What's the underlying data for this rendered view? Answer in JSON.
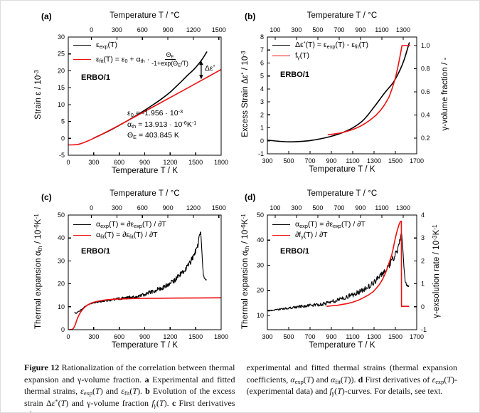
{
  "caption": {
    "left": "!{Figure 12} Rationalization of the correlation between thermal expansion and γ-volume fraction. !{a} Experimental and fitted thermal strains, ~{ε}_{exp}(~{T}) and ~{ε}_{fit}(~{T}). !{b} Evolution of the excess strain Δ~{ε}^{*}(~{T}) and γ-volume fraction ~{f}_{~{γ}}(~{T}). !{c} First derivatives of",
    "right": "experimental and fitted thermal strains (thermal expansion coefficients, ~{α}_{exp}(~{T}) and ~{α}_{fit}(~{T})). !{d} First derivatives of ~{ε}_{exp}(~{T})-(experimental data) and ~{f}_{~{γ}}(~{T})-curves. For details, see text."
  },
  "colors": {
    "experimental": "#000000",
    "fit": "#ee1111",
    "axis": "#000000"
  },
  "chart_data": [
    {
      "id": "a",
      "panel_label": "(a)",
      "type": "line",
      "top_axis_label": "Temperature T / °C",
      "x_axis_label": "Temperature T / K",
      "y_axis_label": "Strain ε / 10^{-3}",
      "x_range": [
        0,
        1800
      ],
      "x_ticks": [
        0,
        300,
        600,
        900,
        1200,
        1500,
        1800
      ],
      "x_ticks_celsius": [
        0,
        300,
        600,
        900,
        1200,
        1500
      ],
      "y_range": [
        -5,
        30
      ],
      "y_ticks": [
        -5,
        0,
        5,
        10,
        15,
        20,
        25,
        30
      ],
      "grid": false,
      "sample_label": "ERBO/1",
      "legend": [
        {
          "color": "#000000",
          "label": "ε_{exp}(T)"
        },
        {
          "color": "#ee1111",
          "label": "ε_{fit}(T) = ε_{0} + α_{th} ·",
          "frac_num": "Θ_{E}",
          "frac_den": "-1+exp(Θ_{E}/T)"
        }
      ],
      "fit_parameters": [
        "ε_{0}  =  -1.956 · 10^{-3}",
        "α_{th}  =  13.913 · 10^{-6}K^{-1}",
        "Θ_{E} = 403.845 K"
      ],
      "arrow_annotation": {
        "x": 1565,
        "y_from": 17.5,
        "y_to": 23.0,
        "label": "Δε^{*}"
      },
      "series": [
        {
          "name": "eps_exp",
          "color": "#000000",
          "axis": "L",
          "smooth": true,
          "width": 1.6,
          "points": [
            [
              300,
              0.07
            ],
            [
              400,
              1.24
            ],
            [
              500,
              2.48
            ],
            [
              600,
              3.85
            ],
            [
              700,
              5.26
            ],
            [
              800,
              6.76
            ],
            [
              900,
              8.32
            ],
            [
              1000,
              9.96
            ],
            [
              1100,
              11.71
            ],
            [
              1200,
              13.69
            ],
            [
              1300,
              16.06
            ],
            [
              1400,
              18.55
            ],
            [
              1480,
              20.45
            ],
            [
              1540,
              22.19
            ],
            [
              1580,
              23.53
            ],
            [
              1610,
              24.74
            ],
            [
              1630,
              25.55
            ]
          ]
        },
        {
          "name": "eps_fit",
          "color": "#ee1111",
          "axis": "L",
          "smooth": true,
          "width": 1.6,
          "points": [
            [
              0,
              -1.96
            ],
            [
              100,
              -1.86
            ],
            [
              150,
              -1.55
            ],
            [
              200,
              -1.1
            ],
            [
              250,
              -0.56
            ],
            [
              300,
              0.02
            ],
            [
              400,
              1.27
            ],
            [
              500,
              2.56
            ],
            [
              600,
              3.9
            ],
            [
              700,
              5.24
            ],
            [
              800,
              6.6
            ],
            [
              900,
              7.97
            ],
            [
              1000,
              9.34
            ],
            [
              1100,
              10.71
            ],
            [
              1200,
              12.09
            ],
            [
              1300,
              13.46
            ],
            [
              1400,
              14.85
            ],
            [
              1500,
              16.23
            ],
            [
              1600,
              17.61
            ],
            [
              1700,
              18.99
            ],
            [
              1800,
              20.39
            ]
          ]
        }
      ]
    },
    {
      "id": "b",
      "panel_label": "(b)",
      "type": "line",
      "top_axis_label": "Temperature T / °C",
      "x_axis_label": "Temperature T / K",
      "y_axis_label": "Excess Strain Δε^{*} / 10^{-3}",
      "x_range": [
        300,
        1700
      ],
      "x_ticks": [
        300,
        500,
        700,
        900,
        1100,
        1300,
        1500,
        1700
      ],
      "x_ticks_celsius": [
        100,
        300,
        500,
        700,
        900,
        1100,
        1300
      ],
      "y_range": [
        -1,
        8
      ],
      "y_ticks": [
        -1,
        0,
        1,
        2,
        3,
        4,
        5,
        6,
        7,
        8
      ],
      "y_right": {
        "label": "γ-volume fraction / -",
        "range": [
          0.0656,
          1.0735
        ],
        "ticks": [
          0.2,
          0.4,
          0.6,
          0.8,
          1.0
        ],
        "tick_labels": [
          "0.2",
          "0.4",
          "0.6",
          "0.8",
          "1.0"
        ]
      },
      "grid": false,
      "sample_label": "ERBO/1",
      "legend": [
        {
          "color": "#000000",
          "label": "Δε^{*}(T) = ε_{exp}(T) - ε_{fit}(T)"
        },
        {
          "color": "#ee1111",
          "label": "f_{γ}(T)"
        }
      ],
      "series": [
        {
          "name": "delta_eps_star",
          "color": "#000000",
          "axis": "L",
          "smooth": true,
          "width": 1.6,
          "points": [
            [
              300,
              0.05
            ],
            [
              400,
              -0.03
            ],
            [
              500,
              -0.08
            ],
            [
              600,
              -0.05
            ],
            [
              700,
              0.02
            ],
            [
              800,
              0.16
            ],
            [
              900,
              0.35
            ],
            [
              1000,
              0.62
            ],
            [
              1100,
              1.0
            ],
            [
              1200,
              1.6
            ],
            [
              1300,
              2.6
            ],
            [
              1400,
              3.7
            ],
            [
              1480,
              4.5
            ],
            [
              1540,
              5.4
            ],
            [
              1580,
              6.2
            ],
            [
              1610,
              7.0
            ],
            [
              1630,
              7.55
            ]
          ]
        },
        {
          "name": "f_gamma",
          "color": "#ee1111",
          "axis": "R",
          "smooth": false,
          "width": 1.6,
          "points": [
            [
              870,
              0.23
            ],
            [
              920,
              0.236
            ],
            [
              970,
              0.243
            ],
            [
              1020,
              0.253
            ],
            [
              1070,
              0.266
            ],
            [
              1120,
              0.282
            ],
            [
              1170,
              0.303
            ],
            [
              1220,
              0.33
            ],
            [
              1270,
              0.362
            ],
            [
              1320,
              0.4
            ],
            [
              1360,
              0.44
            ],
            [
              1400,
              0.49
            ],
            [
              1440,
              0.555
            ],
            [
              1470,
              0.63
            ],
            [
              1500,
              0.72
            ],
            [
              1520,
              0.8
            ],
            [
              1540,
              0.89
            ],
            [
              1552,
              0.95
            ],
            [
              1562,
              1.0
            ],
            [
              1635,
              1.0
            ]
          ]
        }
      ]
    },
    {
      "id": "c",
      "panel_label": "(c)",
      "type": "line",
      "top_axis_label": "Temperature T / °C",
      "x_axis_label": "Temperature T / K",
      "y_axis_label": "Thermal expansion  α_{th} / 10^{-6}K^{-1}",
      "x_range": [
        0,
        1800
      ],
      "x_ticks": [
        0,
        300,
        600,
        900,
        1200,
        1500,
        1800
      ],
      "x_ticks_celsius": [
        0,
        300,
        600,
        900,
        1200,
        1500
      ],
      "y_range": [
        0,
        50
      ],
      "y_ticks": [
        0,
        10,
        20,
        30,
        40,
        50
      ],
      "grid": false,
      "sample_label": "ERBO/1",
      "legend": [
        {
          "color": "#000000",
          "label": "α_{exp}(T) = ∂ε_{exp}(T) / ∂T"
        },
        {
          "color": "#ee1111",
          "label": "α_{fit}(T)  = ∂ε_{fit}(T) / ∂T"
        }
      ],
      "series": [
        {
          "name": "alpha_exp",
          "color": "#000000",
          "axis": "L",
          "width": 1.1,
          "noise": {
            "x0": 250,
            "a0": 0.5,
            "x1": 1548,
            "a1": 2.8,
            "after": 1.0,
            "step": 4
          },
          "points": [
            [
              75,
              7.6
            ],
            [
              95,
              7.1
            ],
            [
              110,
              7.6
            ],
            [
              130,
              8.1
            ],
            [
              160,
              8.8
            ],
            [
              200,
              10.2
            ],
            [
              250,
              11.2
            ],
            [
              300,
              11.8
            ],
            [
              350,
              12.1
            ],
            [
              400,
              12.4
            ],
            [
              500,
              12.9
            ],
            [
              600,
              13.5
            ],
            [
              700,
              14.0
            ],
            [
              800,
              14.3
            ],
            [
              900,
              15.4
            ],
            [
              1000,
              16.8
            ],
            [
              1100,
              18.2
            ],
            [
              1200,
              20.2
            ],
            [
              1250,
              21.6
            ],
            [
              1300,
              23.3
            ],
            [
              1350,
              25.2
            ],
            [
              1400,
              27.6
            ],
            [
              1440,
              29.8
            ],
            [
              1480,
              32.5
            ],
            [
              1510,
              35.0
            ],
            [
              1530,
              37.5
            ],
            [
              1545,
              40.5
            ],
            [
              1555,
              42.8
            ],
            [
              1562,
              41.5
            ],
            [
              1572,
              35.0
            ],
            [
              1582,
              28.0
            ],
            [
              1592,
              23.5
            ],
            [
              1605,
              22.2
            ],
            [
              1625,
              21.8
            ]
          ]
        },
        {
          "name": "alpha_fit",
          "color": "#ee1111",
          "axis": "L",
          "smooth": true,
          "width": 1.6,
          "points": [
            [
              0,
              0
            ],
            [
              40,
              0.1
            ],
            [
              60,
              0.6
            ],
            [
              80,
              2.0
            ],
            [
              100,
              4.1
            ],
            [
              120,
              5.9
            ],
            [
              150,
              7.9
            ],
            [
              200,
              10.0
            ],
            [
              250,
              11.2
            ],
            [
              300,
              12.0
            ],
            [
              400,
              12.8
            ],
            [
              500,
              13.2
            ],
            [
              600,
              13.4
            ],
            [
              800,
              13.6
            ],
            [
              1000,
              13.7
            ],
            [
              1300,
              13.8
            ],
            [
              1800,
              13.9
            ]
          ]
        }
      ]
    },
    {
      "id": "d",
      "panel_label": "(d)",
      "type": "line",
      "top_axis_label": "Temperature T / °C",
      "x_axis_label": "Temperature T / K",
      "y_axis_label": "Thermal expansion  α_{th} / 10^{-6}K^{-1}",
      "x_range": [
        300,
        1700
      ],
      "x_ticks": [
        300,
        500,
        700,
        900,
        1100,
        1300,
        1500,
        1700
      ],
      "x_ticks_celsius": [
        100,
        300,
        500,
        700,
        900,
        1100,
        1300
      ],
      "y_range": [
        4.3,
        50
      ],
      "y_ticks": [
        10,
        20,
        30,
        40,
        50
      ],
      "y_right": {
        "label": "γ-exsolution rate / 10^{-3}K^{-1}",
        "range": [
          -1,
          4
        ],
        "ticks": [
          -1,
          0,
          1,
          2,
          3,
          4
        ],
        "tick_labels": [
          "-1",
          "0",
          "1",
          "2",
          "3",
          "4"
        ]
      },
      "grid": false,
      "sample_label": "ERBO/1",
      "legend": [
        {
          "color": "#000000",
          "label": "α_{exp}(T) = ∂ε_{exp}(T) / ∂T"
        },
        {
          "color": "#ee1111",
          "label": "∂f_{γ}(T) / ∂T"
        }
      ],
      "series": [
        {
          "name": "alpha_exp",
          "color": "#000000",
          "axis": "L",
          "width": 1.1,
          "noise": {
            "x0": 300,
            "a0": 0.5,
            "x1": 1548,
            "a1": 2.8,
            "after": 1.0,
            "step": 4
          },
          "points": [
            [
              300,
              11.8
            ],
            [
              350,
              12.1
            ],
            [
              400,
              12.4
            ],
            [
              500,
              12.9
            ],
            [
              600,
              13.5
            ],
            [
              700,
              14.0
            ],
            [
              800,
              14.3
            ],
            [
              900,
              15.4
            ],
            [
              1000,
              16.8
            ],
            [
              1100,
              18.2
            ],
            [
              1200,
              20.2
            ],
            [
              1250,
              21.6
            ],
            [
              1300,
              23.3
            ],
            [
              1350,
              25.2
            ],
            [
              1400,
              27.6
            ],
            [
              1440,
              29.8
            ],
            [
              1480,
              32.5
            ],
            [
              1510,
              35.0
            ],
            [
              1530,
              37.5
            ],
            [
              1545,
              40.5
            ],
            [
              1555,
              42.8
            ],
            [
              1562,
              41.5
            ],
            [
              1572,
              35.0
            ],
            [
              1582,
              28.0
            ],
            [
              1592,
              23.5
            ],
            [
              1605,
              22.2
            ],
            [
              1625,
              21.8
            ]
          ]
        },
        {
          "name": "f_gamma_rate",
          "color": "#ee1111",
          "axis": "R",
          "smooth": false,
          "width": 1.6,
          "points": [
            [
              860,
              0.02
            ],
            [
              900,
              0.04
            ],
            [
              950,
              0.06
            ],
            [
              1000,
              0.1
            ],
            [
              1050,
              0.14
            ],
            [
              1100,
              0.2
            ],
            [
              1150,
              0.28
            ],
            [
              1200,
              0.39
            ],
            [
              1250,
              0.52
            ],
            [
              1290,
              0.65
            ],
            [
              1320,
              0.8
            ],
            [
              1350,
              0.97
            ],
            [
              1380,
              1.2
            ],
            [
              1410,
              1.5
            ],
            [
              1440,
              1.9
            ],
            [
              1465,
              2.25
            ],
            [
              1480,
              2.55
            ],
            [
              1495,
              2.9
            ],
            [
              1510,
              3.2
            ],
            [
              1525,
              3.45
            ],
            [
              1535,
              3.6
            ],
            [
              1545,
              3.7
            ],
            [
              1552,
              3.73
            ],
            [
              1556,
              3.73
            ],
            [
              1557,
              0.02
            ],
            [
              1625,
              0.02
            ]
          ]
        }
      ]
    }
  ]
}
